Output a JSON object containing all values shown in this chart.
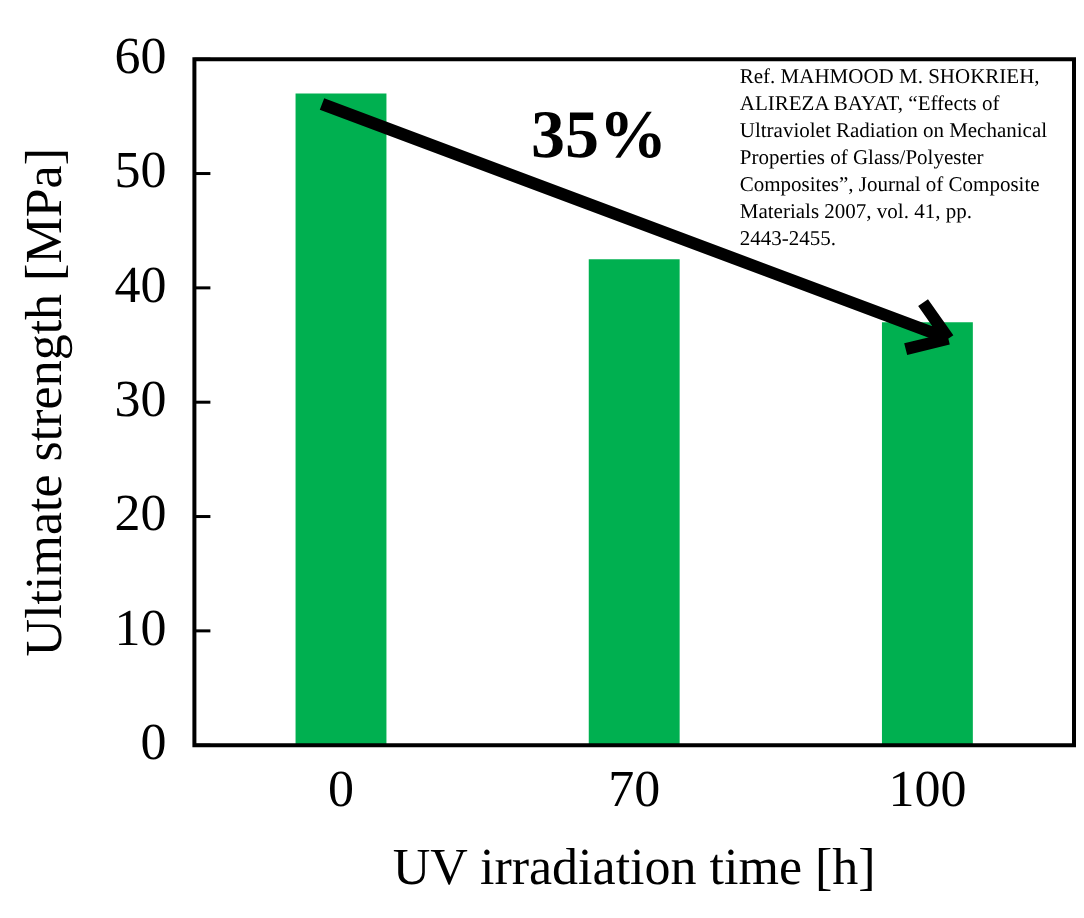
{
  "chart_data": {
    "type": "bar",
    "xlabel": "UV irradiation time [h]",
    "ylabel": "Ultimate strength [MPa]",
    "categories": [
      "0",
      "70",
      "100"
    ],
    "values": [
      57,
      42.5,
      37
    ],
    "color": "#00b050",
    "ylim": [
      0,
      60
    ],
    "yticks": [
      0,
      10,
      20,
      30,
      40,
      50,
      60
    ],
    "grid": false,
    "annotations": [
      "35%",
      "Ref. MAHMOOD M. SHOKRIEH, ALIREZA BAYAT, “Effects of Ultraviolet Radiation on Mechanical Properties of Glass/Polyester Composites”, Journal of Composite Materials 2007, vol. 41, pp. 2443-2455."
    ]
  }
}
